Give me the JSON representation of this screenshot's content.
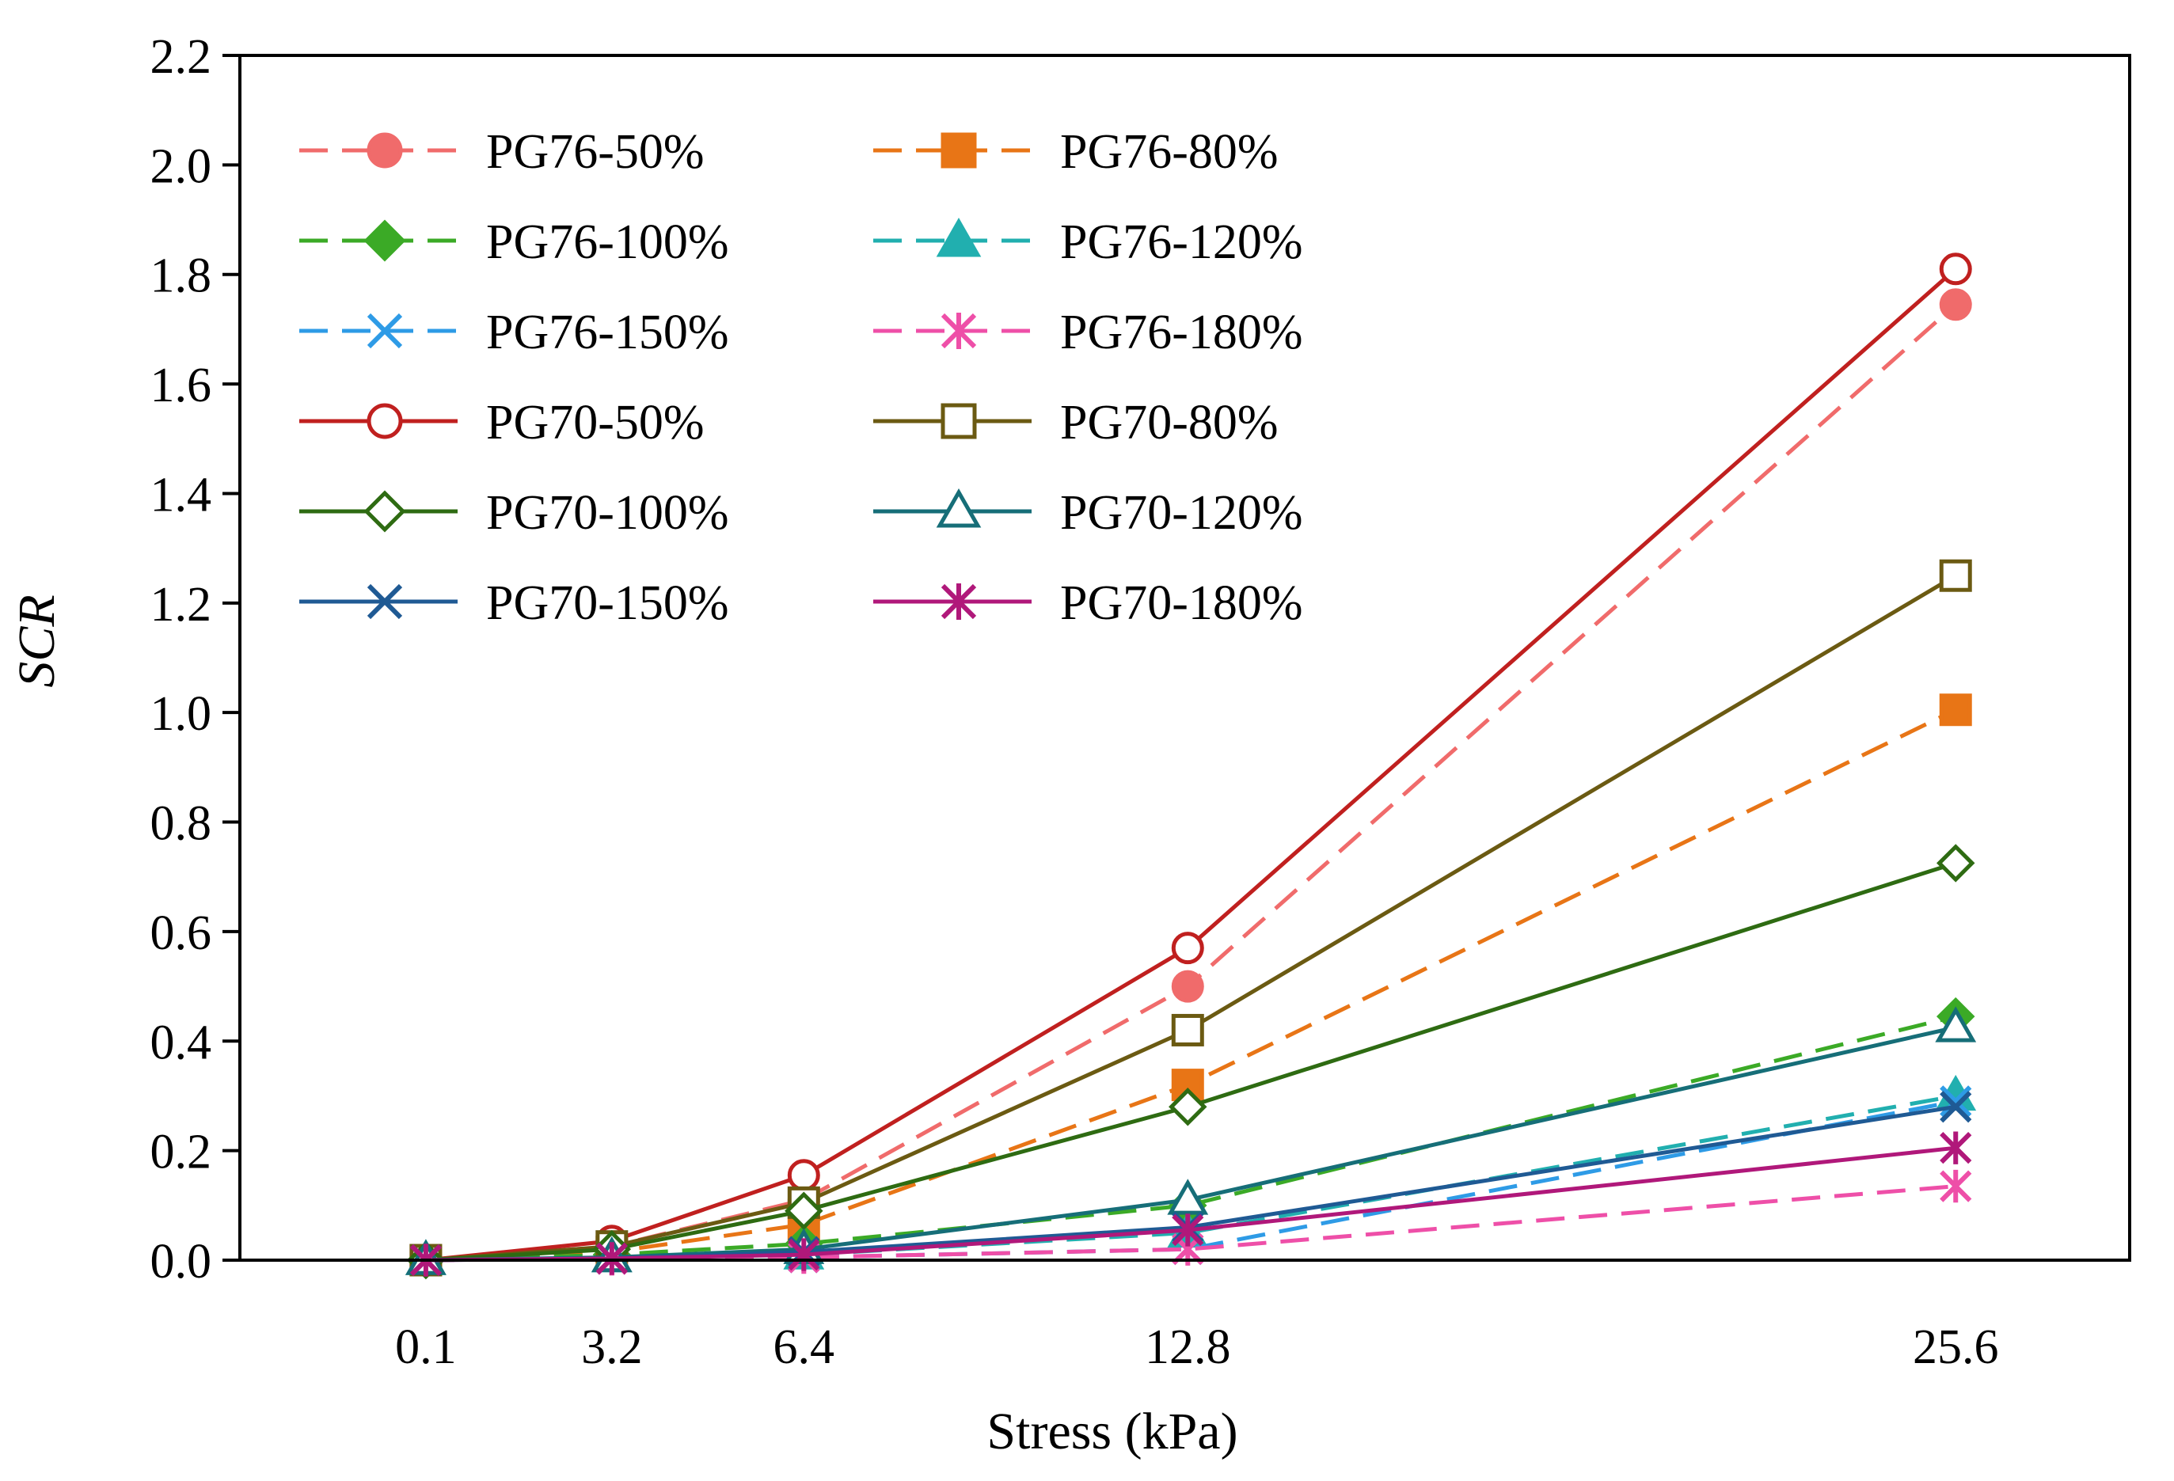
{
  "chart_data": {
    "type": "line",
    "title": "",
    "xlabel": "Stress (kPa)",
    "ylabel": "SCR",
    "categories": [
      "0.1",
      "3.2",
      "6.4",
      "12.8",
      "25.6"
    ],
    "x": [
      0.1,
      3.2,
      6.4,
      12.8,
      25.6
    ],
    "xlim": [
      -3,
      28.5
    ],
    "ylim": [
      0,
      2.2
    ],
    "yticks": [
      "0.0",
      "0.2",
      "0.4",
      "0.6",
      "0.8",
      "1.0",
      "1.2",
      "1.4",
      "1.6",
      "1.8",
      "2.0",
      "2.2"
    ],
    "grid": false,
    "legend_position": "top-left",
    "series": [
      {
        "name": "PG76-50%",
        "color": "#F06B6B",
        "dash": "dashed",
        "marker": "circle-filled",
        "values": [
          0,
          0.025,
          0.11,
          0.5,
          1.745
        ]
      },
      {
        "name": "PG76-80%",
        "color": "#E87516",
        "dash": "dashed",
        "marker": "square-filled",
        "values": [
          0,
          0.015,
          0.065,
          0.32,
          1.005
        ]
      },
      {
        "name": "PG76-100%",
        "color": "#3BAA26",
        "dash": "dashed",
        "marker": "diamond-filled",
        "values": [
          0,
          0.01,
          0.03,
          0.1,
          0.445
        ]
      },
      {
        "name": "PG76-120%",
        "color": "#21AFAF",
        "dash": "dashed",
        "marker": "triangle-filled",
        "values": [
          0,
          0.005,
          0.01,
          0.05,
          0.3
        ]
      },
      {
        "name": "PG76-150%",
        "color": "#2E9BE6",
        "dash": "dashed",
        "marker": "x",
        "values": [
          0,
          0.003,
          0.005,
          0.02,
          0.29
        ]
      },
      {
        "name": "PG76-180%",
        "color": "#EE4FA8",
        "dash": "dashed",
        "marker": "asterisk",
        "values": [
          0,
          0.002,
          0.005,
          0.02,
          0.135
        ]
      },
      {
        "name": "PG70-50%",
        "color": "#C0201F",
        "dash": "solid",
        "marker": "circle-open",
        "values": [
          0,
          0.035,
          0.155,
          0.57,
          1.81
        ]
      },
      {
        "name": "PG70-80%",
        "color": "#6B5A12",
        "dash": "solid",
        "marker": "square-open",
        "values": [
          0,
          0.025,
          0.105,
          0.42,
          1.25
        ]
      },
      {
        "name": "PG70-100%",
        "color": "#2E6B12",
        "dash": "solid",
        "marker": "diamond-open",
        "values": [
          0,
          0.02,
          0.09,
          0.28,
          0.725
        ]
      },
      {
        "name": "PG70-120%",
        "color": "#166E78",
        "dash": "solid",
        "marker": "triangle-open",
        "values": [
          0,
          0.005,
          0.02,
          0.11,
          0.425
        ]
      },
      {
        "name": "PG70-150%",
        "color": "#1F5A94",
        "dash": "solid",
        "marker": "x",
        "values": [
          0,
          0.003,
          0.015,
          0.06,
          0.28
        ]
      },
      {
        "name": "PG70-180%",
        "color": "#B0187A",
        "dash": "solid",
        "marker": "asterisk",
        "values": [
          0,
          0.003,
          0.01,
          0.055,
          0.205
        ]
      }
    ]
  }
}
